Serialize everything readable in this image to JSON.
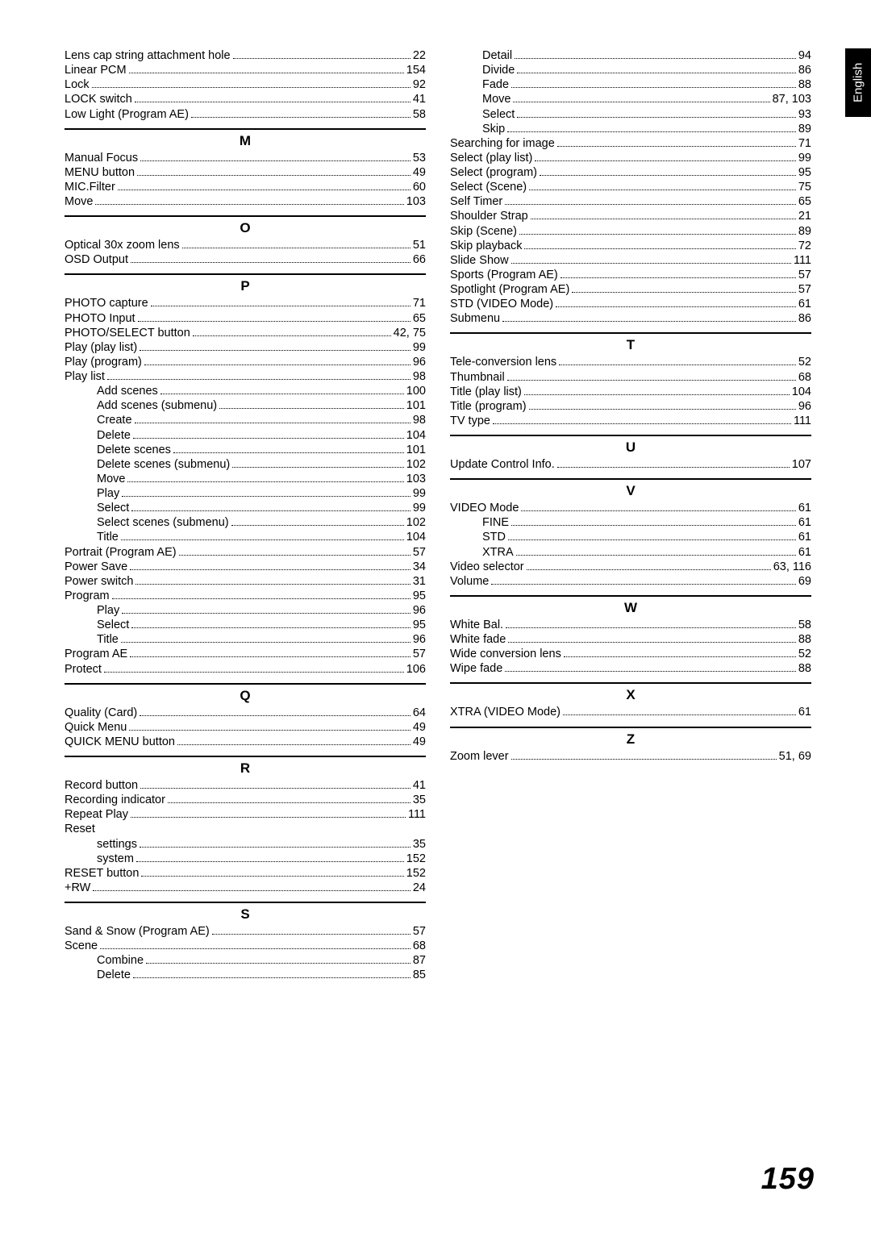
{
  "language_tab": "English",
  "page_number": "159",
  "left_column": [
    {
      "type": "entry",
      "label": "Lens cap string attachment hole",
      "page": "22"
    },
    {
      "type": "entry",
      "label": "Linear PCM",
      "page": "154"
    },
    {
      "type": "entry",
      "label": "Lock",
      "page": "92"
    },
    {
      "type": "entry",
      "label": "LOCK switch",
      "page": "41"
    },
    {
      "type": "entry",
      "label": "Low Light (Program AE)",
      "page": "58"
    },
    {
      "type": "header",
      "label": "M"
    },
    {
      "type": "entry",
      "label": "Manual Focus",
      "page": "53"
    },
    {
      "type": "entry",
      "label": "MENU button",
      "page": "49"
    },
    {
      "type": "entry",
      "label": "MIC.Filter",
      "page": "60"
    },
    {
      "type": "entry",
      "label": "Move",
      "page": "103"
    },
    {
      "type": "header",
      "label": "O"
    },
    {
      "type": "entry",
      "label": "Optical 30x zoom lens",
      "page": "51"
    },
    {
      "type": "entry",
      "label": "OSD Output",
      "page": "66"
    },
    {
      "type": "header",
      "label": "P"
    },
    {
      "type": "entry",
      "label": "PHOTO capture",
      "page": "71"
    },
    {
      "type": "entry",
      "label": "PHOTO Input",
      "page": "65"
    },
    {
      "type": "entry",
      "label": "PHOTO/SELECT button",
      "page": "42, 75"
    },
    {
      "type": "entry",
      "label": "Play (play list)",
      "page": "99"
    },
    {
      "type": "entry",
      "label": "Play (program)",
      "page": "96"
    },
    {
      "type": "entry",
      "label": "Play list",
      "page": "98"
    },
    {
      "type": "entry",
      "indent": 1,
      "label": "Add scenes",
      "page": "100"
    },
    {
      "type": "entry",
      "indent": 1,
      "label": "Add scenes (submenu)",
      "page": "101"
    },
    {
      "type": "entry",
      "indent": 1,
      "label": "Create",
      "page": "98"
    },
    {
      "type": "entry",
      "indent": 1,
      "label": "Delete",
      "page": "104"
    },
    {
      "type": "entry",
      "indent": 1,
      "label": "Delete scenes",
      "page": "101"
    },
    {
      "type": "entry",
      "indent": 1,
      "label": "Delete scenes (submenu)",
      "page": "102"
    },
    {
      "type": "entry",
      "indent": 1,
      "label": "Move",
      "page": "103"
    },
    {
      "type": "entry",
      "indent": 1,
      "label": "Play",
      "page": "99"
    },
    {
      "type": "entry",
      "indent": 1,
      "label": "Select",
      "page": "99"
    },
    {
      "type": "entry",
      "indent": 1,
      "label": "Select scenes (submenu)",
      "page": "102"
    },
    {
      "type": "entry",
      "indent": 1,
      "label": "Title",
      "page": "104"
    },
    {
      "type": "entry",
      "label": "Portrait (Program AE)",
      "page": "57"
    },
    {
      "type": "entry",
      "label": "Power Save",
      "page": "34"
    },
    {
      "type": "entry",
      "label": "Power switch",
      "page": "31"
    },
    {
      "type": "entry",
      "label": "Program",
      "page": "95"
    },
    {
      "type": "entry",
      "indent": 1,
      "label": "Play",
      "page": "96"
    },
    {
      "type": "entry",
      "indent": 1,
      "label": "Select",
      "page": "95"
    },
    {
      "type": "entry",
      "indent": 1,
      "label": "Title",
      "page": "96"
    },
    {
      "type": "entry",
      "label": "Program AE",
      "page": "57"
    },
    {
      "type": "entry",
      "label": "Protect",
      "page": "106"
    },
    {
      "type": "header",
      "label": "Q"
    },
    {
      "type": "entry",
      "label": "Quality (Card)",
      "page": "64"
    },
    {
      "type": "entry",
      "label": "Quick Menu",
      "page": "49"
    },
    {
      "type": "entry",
      "label": "QUICK MENU button",
      "page": "49"
    },
    {
      "type": "header",
      "label": "R"
    },
    {
      "type": "entry",
      "label": "Record button",
      "page": "41"
    },
    {
      "type": "entry",
      "label": "Recording indicator",
      "page": "35"
    },
    {
      "type": "entry",
      "label": "Repeat Play",
      "page": "111"
    },
    {
      "type": "entry",
      "noPage": true,
      "label": "Reset",
      "page": ""
    },
    {
      "type": "entry",
      "indent": 1,
      "label": "settings",
      "page": "35"
    },
    {
      "type": "entry",
      "indent": 1,
      "label": "system",
      "page": "152"
    },
    {
      "type": "entry",
      "label": "RESET button",
      "page": "152"
    },
    {
      "type": "entry",
      "label": "+RW",
      "page": "24"
    },
    {
      "type": "header",
      "label": "S"
    },
    {
      "type": "entry",
      "label": "Sand & Snow (Program AE)",
      "page": "57"
    },
    {
      "type": "entry",
      "label": "Scene",
      "page": "68"
    },
    {
      "type": "entry",
      "indent": 1,
      "label": "Combine",
      "page": "87"
    },
    {
      "type": "entry",
      "indent": 1,
      "label": "Delete",
      "page": "85"
    }
  ],
  "right_column": [
    {
      "type": "entry",
      "indent": 1,
      "label": "Detail",
      "page": "94"
    },
    {
      "type": "entry",
      "indent": 1,
      "label": "Divide",
      "page": "86"
    },
    {
      "type": "entry",
      "indent": 1,
      "label": "Fade",
      "page": "88"
    },
    {
      "type": "entry",
      "indent": 1,
      "label": "Move",
      "page": "87, 103"
    },
    {
      "type": "entry",
      "indent": 1,
      "label": "Select",
      "page": "93"
    },
    {
      "type": "entry",
      "indent": 1,
      "label": "Skip",
      "page": "89"
    },
    {
      "type": "entry",
      "label": "Searching for image",
      "page": "71"
    },
    {
      "type": "entry",
      "label": "Select (play list)",
      "page": "99"
    },
    {
      "type": "entry",
      "label": "Select (program)",
      "page": "95"
    },
    {
      "type": "entry",
      "label": "Select (Scene)",
      "page": "75"
    },
    {
      "type": "entry",
      "label": "Self Timer",
      "page": "65"
    },
    {
      "type": "entry",
      "label": "Shoulder Strap",
      "page": "21"
    },
    {
      "type": "entry",
      "label": "Skip (Scene)",
      "page": "89"
    },
    {
      "type": "entry",
      "label": "Skip playback",
      "page": "72"
    },
    {
      "type": "entry",
      "label": "Slide Show",
      "page": "111"
    },
    {
      "type": "entry",
      "label": "Sports (Program AE)",
      "page": "57"
    },
    {
      "type": "entry",
      "label": "Spotlight (Program AE)",
      "page": "57"
    },
    {
      "type": "entry",
      "label": "STD (VIDEO Mode)",
      "page": "61"
    },
    {
      "type": "entry",
      "label": "Submenu",
      "page": "86"
    },
    {
      "type": "header",
      "label": "T"
    },
    {
      "type": "entry",
      "label": "Tele-conversion lens",
      "page": "52"
    },
    {
      "type": "entry",
      "label": "Thumbnail",
      "page": "68"
    },
    {
      "type": "entry",
      "label": "Title (play list)",
      "page": "104"
    },
    {
      "type": "entry",
      "label": "Title (program)",
      "page": "96"
    },
    {
      "type": "entry",
      "label": "TV type",
      "page": "111"
    },
    {
      "type": "header",
      "label": "U"
    },
    {
      "type": "entry",
      "label": "Update Control Info.",
      "page": "107"
    },
    {
      "type": "header",
      "label": "V"
    },
    {
      "type": "entry",
      "label": "VIDEO Mode",
      "page": "61"
    },
    {
      "type": "entry",
      "indent": 1,
      "label": "FINE",
      "page": "61"
    },
    {
      "type": "entry",
      "indent": 1,
      "label": "STD",
      "page": "61"
    },
    {
      "type": "entry",
      "indent": 1,
      "label": "XTRA",
      "page": "61"
    },
    {
      "type": "entry",
      "label": "Video selector",
      "page": "63, 116"
    },
    {
      "type": "entry",
      "label": "Volume",
      "page": "69"
    },
    {
      "type": "header",
      "label": "W"
    },
    {
      "type": "entry",
      "label": "White Bal.",
      "page": "58"
    },
    {
      "type": "entry",
      "label": "White fade",
      "page": "88"
    },
    {
      "type": "entry",
      "label": "Wide conversion lens",
      "page": "52"
    },
    {
      "type": "entry",
      "label": "Wipe fade",
      "page": "88"
    },
    {
      "type": "header",
      "label": "X"
    },
    {
      "type": "entry",
      "label": "XTRA (VIDEO Mode)",
      "page": "61"
    },
    {
      "type": "header",
      "label": "Z"
    },
    {
      "type": "entry",
      "label": "Zoom lever",
      "page": "51, 69"
    }
  ]
}
